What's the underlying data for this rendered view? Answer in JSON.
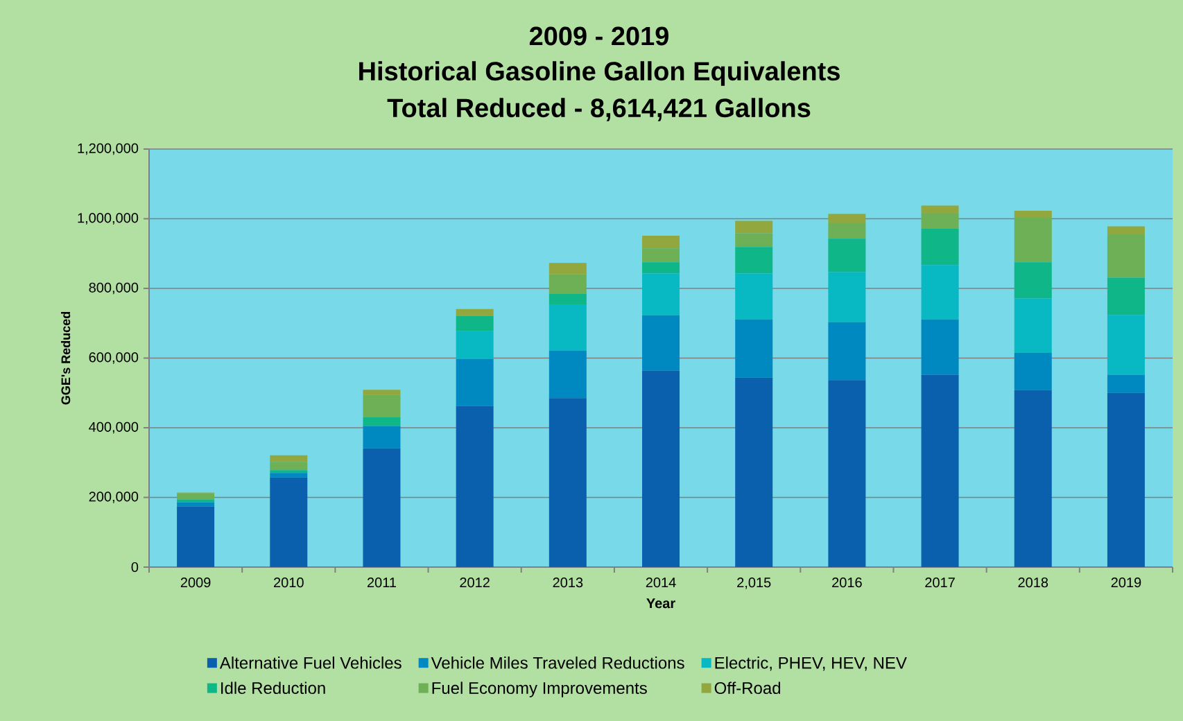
{
  "chart_data": {
    "type": "bar",
    "stacked": true,
    "title": "2009 - 2019",
    "subtitle": "Historical  Gasoline Gallon Equivalents",
    "annotations": [
      "Total Reduced - 8,614,421 Gallons"
    ],
    "xlabel": "Year",
    "ylabel": "GGE's   Reduced",
    "categories": [
      "2009",
      "2010",
      "2011",
      "2012",
      "2013",
      "2014",
      "2,015",
      "2016",
      "2017",
      "2018",
      "2019"
    ],
    "series": [
      {
        "name": "Alternative Fuel Vehicles",
        "color": "#0b60ad",
        "values": [
          174000,
          257000,
          341000,
          462000,
          485000,
          564000,
          544000,
          537000,
          552000,
          508000,
          500000
        ]
      },
      {
        "name": "Vehicle Miles Traveled Reductions",
        "color": "#0089c0",
        "values": [
          12000,
          13000,
          64000,
          135000,
          136000,
          159000,
          167000,
          166000,
          159000,
          107000,
          52000
        ]
      },
      {
        "name": "Electric, PHEV, HEV, NEV",
        "color": "#08b8c2",
        "values": [
          0,
          0,
          0,
          80000,
          133000,
          120000,
          132000,
          144000,
          156000,
          156000,
          172000
        ]
      },
      {
        "name": "Idle Reduction",
        "color": "#0eb688",
        "values": [
          8000,
          8000,
          25000,
          44000,
          31000,
          32000,
          76000,
          96000,
          104000,
          104000,
          107000
        ]
      },
      {
        "name": "Fuel Economy Improvements",
        "color": "#6db055",
        "values": [
          18000,
          24000,
          64000,
          0,
          56000,
          40000,
          39000,
          44000,
          44000,
          128000,
          124000
        ]
      },
      {
        "name": "Off-Road",
        "color": "#92a83f",
        "values": [
          2000,
          19000,
          15000,
          20000,
          32000,
          36000,
          36000,
          27000,
          23000,
          20000,
          23000
        ]
      }
    ],
    "ylim": [
      0,
      1200000
    ],
    "yticks": [
      0,
      {
        "value": 200000,
        "label": "200,000"
      },
      {
        "value": 400000,
        "label": "400,000"
      },
      {
        "value": 600000,
        "label": "600,000"
      },
      {
        "value": 800000,
        "label": "800,000"
      },
      {
        "value": 1000000,
        "label": "1,000,000"
      },
      {
        "value": 1200000,
        "label": "1,200,000"
      }
    ],
    "grid": "y",
    "legend": "bottom"
  }
}
